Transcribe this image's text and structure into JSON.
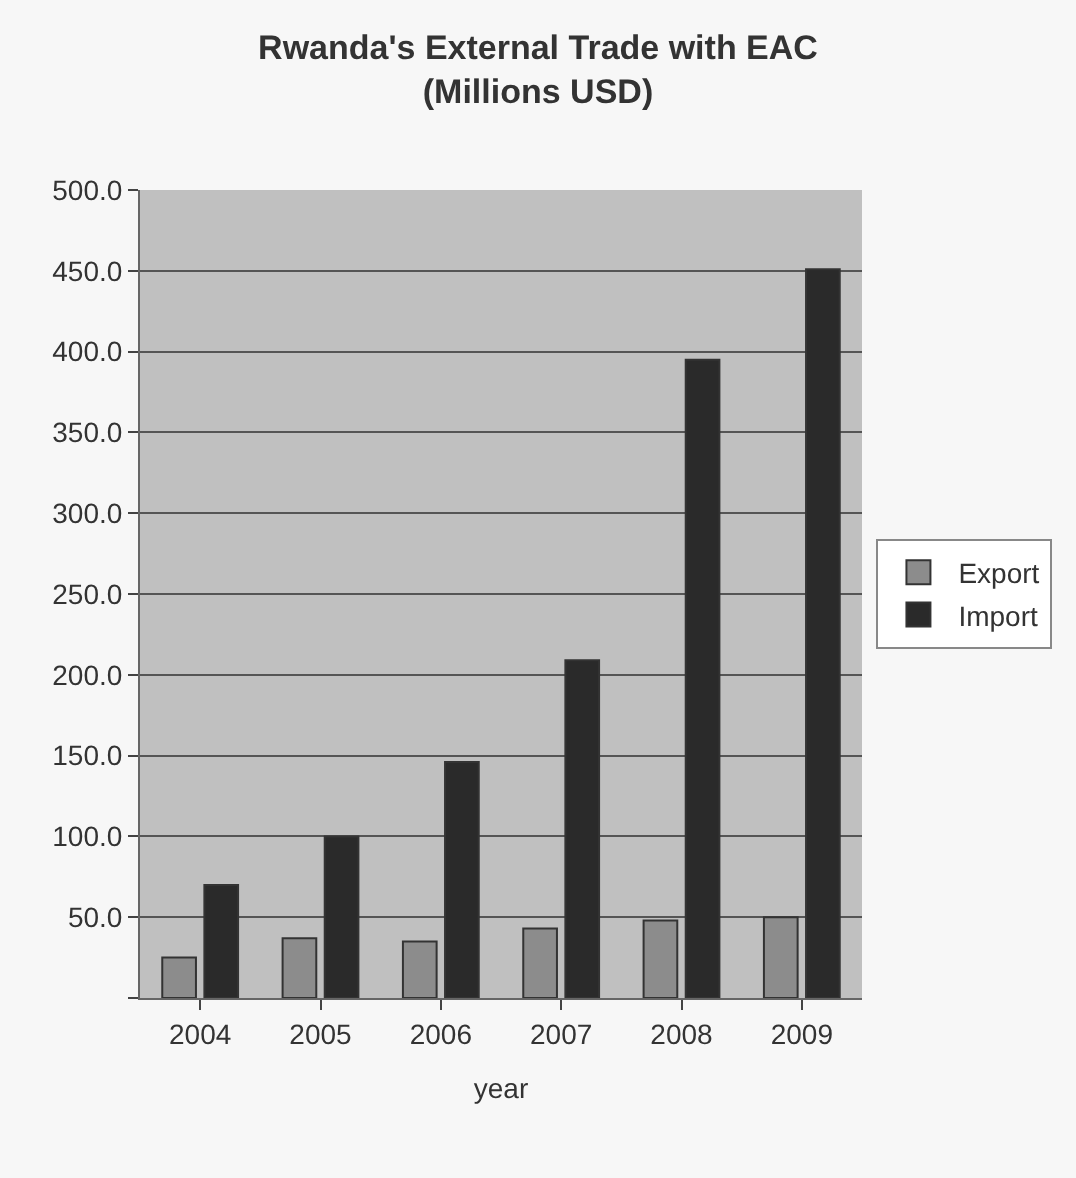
{
  "chart_data": {
    "type": "bar",
    "title": "Rwanda's External Trade with EAC\n(Millions USD)",
    "xlabel": "year",
    "categories": [
      "2004",
      "2005",
      "2006",
      "2007",
      "2008",
      "2009"
    ],
    "series": [
      {
        "name": "Export",
        "color": "#8c8c8c",
        "values": [
          25,
          37,
          35,
          43,
          48,
          50
        ]
      },
      {
        "name": "Import",
        "color": "#2a2a2a",
        "values": [
          70,
          100,
          146,
          209,
          395,
          451
        ]
      }
    ],
    "ylim": [
      0,
      500
    ],
    "yticks": [
      {
        "value": 0,
        "label": null
      },
      {
        "value": 50,
        "label": "50.0"
      },
      {
        "value": 100,
        "label": "100.0"
      },
      {
        "value": 150,
        "label": "150.0"
      },
      {
        "value": 200,
        "label": "200.0"
      },
      {
        "value": 250,
        "label": "250.0"
      },
      {
        "value": 300,
        "label": "300.0"
      },
      {
        "value": 350,
        "label": "350.0"
      },
      {
        "value": 400,
        "label": "400.0"
      },
      {
        "value": 450,
        "label": "450.0"
      },
      {
        "value": 500,
        "label": "500.0"
      }
    ],
    "grid": "y",
    "legend": "right"
  }
}
